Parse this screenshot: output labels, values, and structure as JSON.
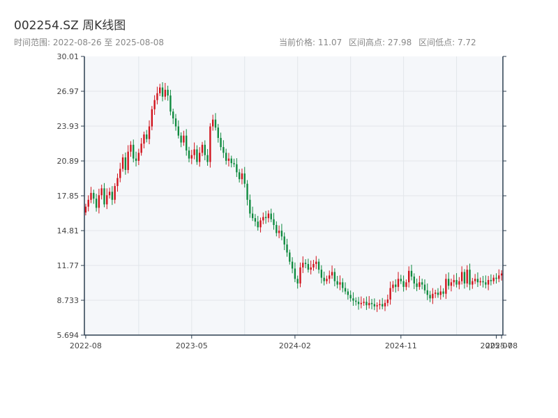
{
  "header": {
    "title": "002254.SZ 周K线图",
    "range_label": "时间范围: 2022-08-26 至 2025-08-08",
    "current_price": "当前价格: 11.07",
    "range_high": "区间高点: 27.98",
    "range_low": "区间低点: 7.72"
  },
  "colors": {
    "up": "#d1121b",
    "down": "#0e8a3e",
    "plot_bg": "#f5f7fa",
    "grid": "#e2e6ea",
    "axis": "#2c3e50"
  },
  "chart_data": {
    "type": "candlestick",
    "title": "002254.SZ 周K线图",
    "xlabel": "",
    "ylabel": "",
    "ylim": [
      5.694,
      30.01
    ],
    "y_ticks": [
      5.694,
      8.733,
      11.77,
      14.81,
      17.85,
      20.89,
      23.93,
      26.97,
      30.01
    ],
    "y_tick_labels": [
      "5.694",
      "8.733",
      "11.77",
      "14.81",
      "17.85",
      "20.89",
      "23.93",
      "26.97",
      "30.01"
    ],
    "x_ticks": [
      "2022-08",
      "2023-05",
      "2024-02",
      "2024-11",
      "2025-07",
      "2025-08"
    ],
    "x_tick_index": [
      0,
      40,
      79,
      119,
      155,
      157
    ],
    "grid": true,
    "close_sequence": [
      16.9,
      17.5,
      18.1,
      17.6,
      16.8,
      17.9,
      18.5,
      17.1,
      17.9,
      18.2,
      17.5,
      18.7,
      19.4,
      20.2,
      21.2,
      20.1,
      21.7,
      22.3,
      21.1,
      20.9,
      21.6,
      22.4,
      23.2,
      22.8,
      23.9,
      25.4,
      26.2,
      26.8,
      27.3,
      26.5,
      27.1,
      26.6,
      25.2,
      24.6,
      23.9,
      23.1,
      22.5,
      23.1,
      21.8,
      21.1,
      21.4,
      21.9,
      20.8,
      21.6,
      22.3,
      21.4,
      20.8,
      23.9,
      24.5,
      23.8,
      22.9,
      22.1,
      21.6,
      20.9,
      21.1,
      20.7,
      20.6,
      19.9,
      19.3,
      19.8,
      18.9,
      17.5,
      16.3,
      15.9,
      15.6,
      15.1,
      15.7,
      16.0,
      15.9,
      16.3,
      15.8,
      15.3,
      14.6,
      14.8,
      14.3,
      13.6,
      12.9,
      12.1,
      11.5,
      10.6,
      10.2,
      11.6,
      12.0,
      11.9,
      11.4,
      11.6,
      11.9,
      12.1,
      11.4,
      10.7,
      10.4,
      10.6,
      10.9,
      11.2,
      10.4,
      10.1,
      10.3,
      9.8,
      9.5,
      9.2,
      8.9,
      8.7,
      8.6,
      8.4,
      8.5,
      8.6,
      8.3,
      8.5,
      8.4,
      8.2,
      8.3,
      8.4,
      8.2,
      8.5,
      8.8,
      9.8,
      10.1,
      9.9,
      10.6,
      10.4,
      9.9,
      10.3,
      11.3,
      10.8,
      10.2,
      9.9,
      10.3,
      10.1,
      9.6,
      9.2,
      8.9,
      9.3,
      9.4,
      9.2,
      9.5,
      9.3,
      10.6,
      10.0,
      10.3,
      10.5,
      10.1,
      10.4,
      11.2,
      10.2,
      11.4,
      10.1,
      10.4,
      10.6,
      10.3,
      10.4,
      10.3,
      10.1,
      10.5,
      10.4,
      10.7,
      10.6,
      10.9,
      11.07
    ]
  }
}
